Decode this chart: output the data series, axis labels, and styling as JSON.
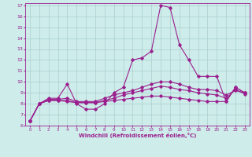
{
  "xlabel": "Windchill (Refroidissement éolien,°C)",
  "background_color": "#cdecea",
  "grid_color": "#aacfcc",
  "line_color": "#9b1e8e",
  "xlim": [
    -0.5,
    23.5
  ],
  "ylim": [
    6,
    17.2
  ],
  "xticks": [
    0,
    1,
    2,
    3,
    4,
    5,
    6,
    7,
    8,
    9,
    10,
    11,
    12,
    13,
    14,
    15,
    16,
    17,
    18,
    19,
    20,
    21,
    22,
    23
  ],
  "yticks": [
    6,
    7,
    8,
    9,
    10,
    11,
    12,
    13,
    14,
    15,
    16,
    17
  ],
  "series": [
    {
      "x": [
        0,
        1,
        2,
        3,
        4,
        5,
        6,
        7,
        8,
        9,
        10,
        11,
        12,
        13,
        14,
        15,
        16,
        17,
        18,
        19,
        20,
        21,
        22,
        23
      ],
      "y": [
        6.4,
        8.0,
        8.5,
        8.5,
        9.8,
        8.0,
        7.5,
        7.5,
        8.0,
        9.0,
        9.5,
        12.0,
        12.2,
        12.8,
        17.0,
        16.8,
        13.4,
        12.0,
        10.5,
        10.5,
        10.5,
        8.2,
        9.5,
        9.0
      ]
    },
    {
      "x": [
        0,
        1,
        2,
        3,
        4,
        5,
        6,
        7,
        8,
        9,
        10,
        11,
        12,
        13,
        14,
        15,
        16,
        17,
        18,
        19,
        20,
        21,
        22,
        23
      ],
      "y": [
        6.4,
        8.0,
        8.4,
        8.4,
        8.5,
        8.2,
        8.2,
        8.2,
        8.5,
        8.8,
        9.0,
        9.2,
        9.5,
        9.8,
        10.0,
        10.0,
        9.8,
        9.5,
        9.3,
        9.3,
        9.2,
        8.8,
        9.2,
        9.0
      ]
    },
    {
      "x": [
        0,
        1,
        2,
        3,
        4,
        5,
        6,
        7,
        8,
        9,
        10,
        11,
        12,
        13,
        14,
        15,
        16,
        17,
        18,
        19,
        20,
        21,
        22,
        23
      ],
      "y": [
        6.4,
        8.0,
        8.3,
        8.3,
        8.2,
        8.1,
        8.1,
        8.1,
        8.2,
        8.3,
        8.4,
        8.5,
        8.6,
        8.7,
        8.7,
        8.6,
        8.5,
        8.4,
        8.3,
        8.2,
        8.2,
        8.2,
        9.5,
        9.0
      ]
    },
    {
      "x": [
        0,
        1,
        2,
        3,
        4,
        5,
        6,
        7,
        8,
        9,
        10,
        11,
        12,
        13,
        14,
        15,
        16,
        17,
        18,
        19,
        20,
        21,
        22,
        23
      ],
      "y": [
        6.4,
        8.0,
        8.3,
        8.3,
        8.3,
        8.1,
        8.1,
        8.1,
        8.3,
        8.5,
        8.8,
        9.0,
        9.2,
        9.4,
        9.6,
        9.5,
        9.3,
        9.2,
        9.0,
        8.9,
        8.8,
        8.5,
        9.3,
        8.9
      ]
    }
  ]
}
